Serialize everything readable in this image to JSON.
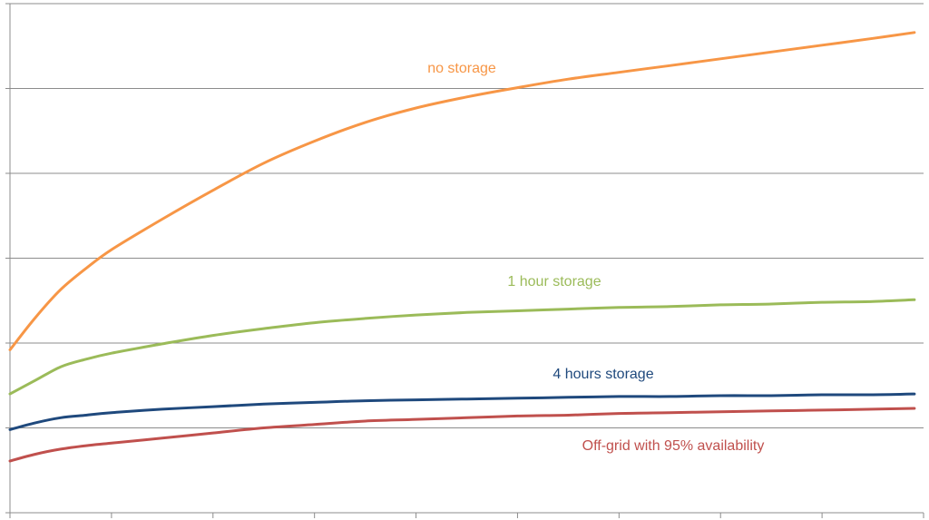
{
  "chart_data": {
    "type": "line",
    "title": "",
    "xlabel": "",
    "ylabel": "",
    "grid": true,
    "legend": "none",
    "x_tick_count": 9,
    "xlim": [
      0,
      9
    ],
    "ylim": [
      0,
      6
    ],
    "series": [
      {
        "name": "no storage",
        "color": "#F79646",
        "x": [
          0,
          0.25,
          0.5,
          0.75,
          1,
          1.5,
          2,
          2.5,
          3,
          3.5,
          4,
          4.5,
          5,
          5.5,
          6,
          6.5,
          7,
          7.5,
          8,
          8.5,
          8.91
        ],
        "y": [
          1.92,
          2.3,
          2.63,
          2.88,
          3.1,
          3.46,
          3.8,
          4.12,
          4.38,
          4.6,
          4.77,
          4.9,
          5.01,
          5.11,
          5.19,
          5.27,
          5.35,
          5.43,
          5.51,
          5.59,
          5.66
        ]
      },
      {
        "name": "1 hour storage",
        "color": "#9BBB59",
        "x": [
          0,
          0.25,
          0.5,
          0.75,
          1,
          1.5,
          2,
          2.5,
          3,
          3.5,
          4,
          4.5,
          5,
          5.5,
          6,
          6.5,
          7,
          7.5,
          8,
          8.5,
          8.91
        ],
        "y": [
          1.4,
          1.56,
          1.72,
          1.81,
          1.88,
          1.99,
          2.09,
          2.17,
          2.24,
          2.29,
          2.33,
          2.36,
          2.38,
          2.4,
          2.42,
          2.43,
          2.45,
          2.46,
          2.48,
          2.49,
          2.51
        ]
      },
      {
        "name": "4 hours storage",
        "color": "#1F497D",
        "x": [
          0,
          0.25,
          0.5,
          0.75,
          1,
          1.5,
          2,
          2.5,
          3,
          3.5,
          4,
          4.5,
          5,
          5.5,
          6,
          6.5,
          7,
          7.5,
          8,
          8.5,
          8.91
        ],
        "y": [
          0.98,
          1.06,
          1.12,
          1.15,
          1.18,
          1.22,
          1.25,
          1.28,
          1.3,
          1.32,
          1.33,
          1.34,
          1.35,
          1.36,
          1.37,
          1.37,
          1.38,
          1.38,
          1.39,
          1.39,
          1.4
        ]
      },
      {
        "name": "Off-grid with 95% availability",
        "color": "#C0504D",
        "x": [
          0,
          0.25,
          0.5,
          0.75,
          1,
          1.5,
          2,
          2.5,
          3,
          3.5,
          4,
          4.5,
          5,
          5.5,
          6,
          6.5,
          7,
          7.5,
          8,
          8.5,
          8.91
        ],
        "y": [
          0.61,
          0.69,
          0.75,
          0.79,
          0.82,
          0.88,
          0.94,
          1.0,
          1.04,
          1.08,
          1.1,
          1.12,
          1.14,
          1.15,
          1.17,
          1.18,
          1.19,
          1.2,
          1.21,
          1.22,
          1.23
        ]
      }
    ]
  }
}
